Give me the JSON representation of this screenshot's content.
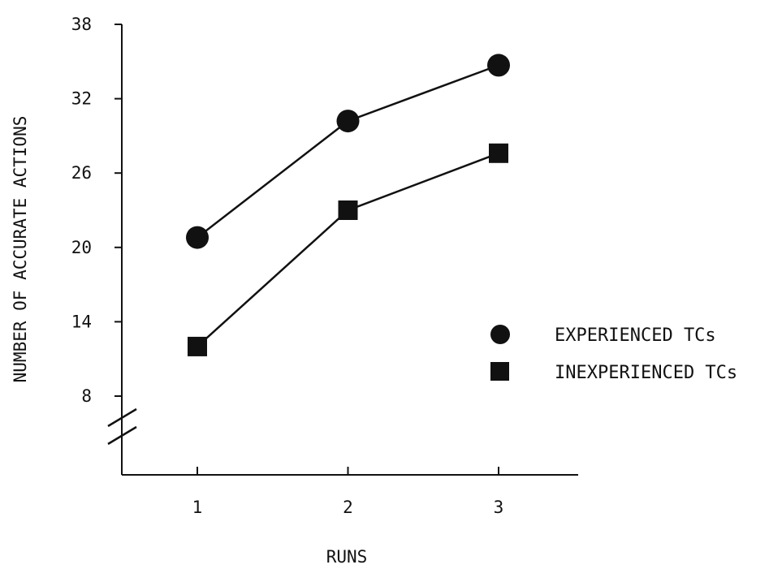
{
  "chart_data": {
    "type": "line",
    "xlabel": "RUNS",
    "ylabel": "NUMBER OF ACCURATE ACTIONS",
    "x": [
      1,
      2,
      3
    ],
    "x_ticks": [
      "1",
      "2",
      "3"
    ],
    "y_ticks": [
      "8",
      "14",
      "20",
      "26",
      "32",
      "38"
    ],
    "ylim": [
      8,
      38
    ],
    "y_axis_break": true,
    "grid": false,
    "legend_position": "right",
    "series": [
      {
        "name": "EXPERIENCED TCs",
        "marker": "circle",
        "values": [
          20.8,
          30.2,
          34.7
        ]
      },
      {
        "name": "INEXPERIENCED TCs",
        "marker": "square",
        "values": [
          12.0,
          23.0,
          27.6
        ]
      }
    ],
    "colors": {
      "ink": "#111111",
      "background": "#ffffff"
    }
  }
}
